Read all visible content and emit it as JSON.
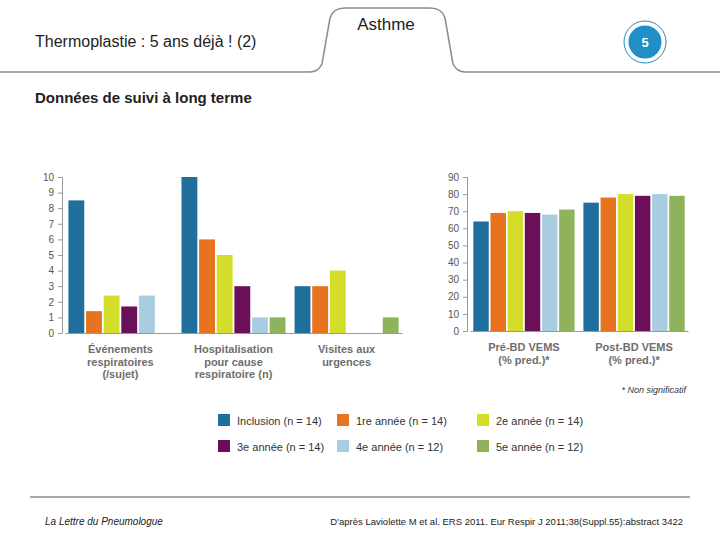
{
  "page": {
    "title": "Thermoplastie : 5 ans déjà ! (2)",
    "tab": "Asthme",
    "badge": "5",
    "subtitle": "Données de suivi à long terme",
    "footer": "La Lettre du Pneumologue",
    "source": "D'après Laviolette M et al. ERS 2011. Eur Respir J 2011;38(Suppl.55):abstract 3422"
  },
  "chart_data": [
    {
      "type": "bar",
      "categories": [
        "Événements\nrespiratoires\n(/sujet)",
        "Hospitalisation\npour cause\nrespiratoire (n)",
        "Visites aux\nurgences"
      ],
      "series": [
        {
          "name": "Inclusion (n = 14)",
          "color": "#1f6e9c",
          "values": [
            8.5,
            10,
            3
          ]
        },
        {
          "name": "1re année (n = 14)",
          "color": "#e8731e",
          "values": [
            1.4,
            6,
            3
          ]
        },
        {
          "name": "2e année (n = 14)",
          "color": "#d4de2a",
          "values": [
            2.4,
            5,
            4
          ]
        },
        {
          "name": "3e année (n = 14)",
          "color": "#6b0f5b",
          "values": [
            1.7,
            3,
            null
          ]
        },
        {
          "name": "4e année (n = 12)",
          "color": "#a9cde0",
          "values": [
            2.4,
            1,
            null
          ]
        },
        {
          "name": "5e année (n = 12)",
          "color": "#8fb35a",
          "values": [
            null,
            1,
            1
          ]
        }
      ],
      "ylim": [
        0,
        10
      ],
      "yticks": [
        0,
        1,
        2,
        3,
        4,
        5,
        6,
        7,
        8,
        9,
        10
      ],
      "grid": false,
      "legend": "bottom"
    },
    {
      "type": "bar",
      "categories": [
        "Pré-BD VEMS\n(% pred.)*",
        "Post-BD VEMS\n(% pred.)*"
      ],
      "series": [
        {
          "color": "#1f6e9c",
          "values": [
            64,
            75
          ]
        },
        {
          "color": "#e8731e",
          "values": [
            69,
            78
          ]
        },
        {
          "color": "#d4de2a",
          "values": [
            70,
            80
          ]
        },
        {
          "color": "#6b0f5b",
          "values": [
            69,
            79
          ]
        },
        {
          "color": "#a9cde0",
          "values": [
            68,
            80
          ]
        },
        {
          "color": "#8fb35a",
          "values": [
            71,
            79
          ]
        }
      ],
      "ylim": [
        0,
        90
      ],
      "yticks": [
        0,
        10,
        20,
        30,
        40,
        50,
        60,
        70,
        80,
        90
      ],
      "grid": false,
      "annotations": [
        "* Non significatif"
      ]
    }
  ]
}
